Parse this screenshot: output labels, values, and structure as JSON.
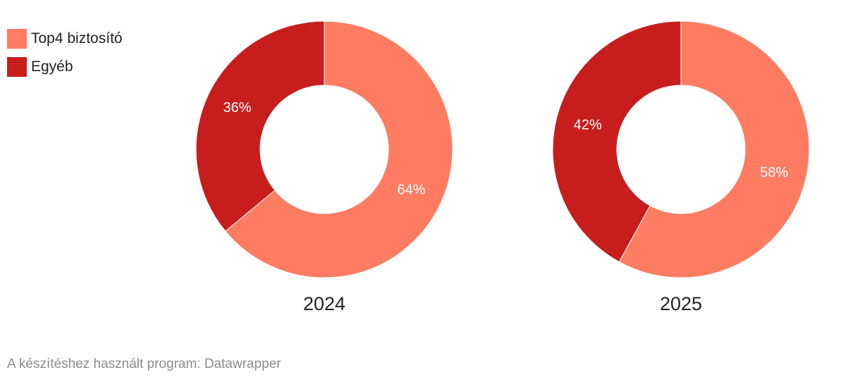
{
  "legend": {
    "items": [
      {
        "label": "Top4 biztosító",
        "color": "#ff7c63"
      },
      {
        "label": "Egyéb",
        "color": "#c71d1d"
      }
    ]
  },
  "footer": {
    "credit": "A készítéshez használt program: Datawrapper"
  },
  "chart_data": {
    "type": "pie",
    "subtype": "donut",
    "series": [
      {
        "name": "2024",
        "slices": [
          {
            "label": "Top4 biztosító",
            "value": 64,
            "display": "64%",
            "color": "#ff7c63"
          },
          {
            "label": "Egyéb",
            "value": 36,
            "display": "36%",
            "color": "#c71d1d"
          }
        ]
      },
      {
        "name": "2025",
        "slices": [
          {
            "label": "Top4 biztosító",
            "value": 58,
            "display": "58%",
            "color": "#ff7c63"
          },
          {
            "label": "Egyéb",
            "value": 42,
            "display": "42%",
            "color": "#c71d1d"
          }
        ]
      }
    ],
    "legend_position": "top-left"
  }
}
